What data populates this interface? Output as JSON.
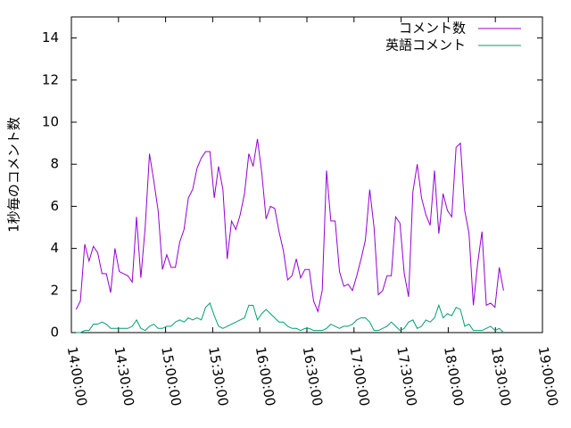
{
  "chart_data": {
    "type": "line",
    "ylabel": "1秒毎のコメント数",
    "x": [
      "14:03:00",
      "14:05:45",
      "14:08:30",
      "14:11:15",
      "14:14:00",
      "14:16:45",
      "14:19:30",
      "14:22:15",
      "14:25:00",
      "14:27:45",
      "14:30:30",
      "14:33:15",
      "14:36:00",
      "14:38:45",
      "14:41:30",
      "14:44:15",
      "14:47:00",
      "14:49:45",
      "14:52:30",
      "14:55:15",
      "14:58:00",
      "15:00:45",
      "15:03:30",
      "15:06:15",
      "15:09:00",
      "15:11:45",
      "15:14:30",
      "15:17:15",
      "15:20:00",
      "15:22:45",
      "15:25:30",
      "15:28:15",
      "15:31:00",
      "15:33:45",
      "15:36:30",
      "15:39:15",
      "15:42:00",
      "15:44:45",
      "15:47:30",
      "15:50:15",
      "15:53:00",
      "15:55:45",
      "15:58:30",
      "16:01:15",
      "16:04:00",
      "16:06:45",
      "16:09:30",
      "16:12:15",
      "16:15:00",
      "16:17:45",
      "16:20:30",
      "16:23:15",
      "16:26:00",
      "16:28:45",
      "16:31:30",
      "16:34:15",
      "16:37:00",
      "16:39:45",
      "16:42:30",
      "16:45:15",
      "16:48:00",
      "16:50:45",
      "16:53:30",
      "16:56:15",
      "16:59:00",
      "17:01:45",
      "17:04:30",
      "17:07:15",
      "17:10:00",
      "17:12:45",
      "17:15:30",
      "17:18:15",
      "17:21:00",
      "17:23:45",
      "17:26:30",
      "17:29:15",
      "17:32:00",
      "17:34:45",
      "17:37:30",
      "17:40:15",
      "17:43:00",
      "17:45:45",
      "17:48:30",
      "17:51:15",
      "17:54:00",
      "17:56:45",
      "17:59:30",
      "18:02:15",
      "18:05:00",
      "18:07:45",
      "18:10:30",
      "18:13:15",
      "18:16:00",
      "18:18:45",
      "18:21:30",
      "18:24:15",
      "18:27:00",
      "18:29:45",
      "18:32:30",
      "18:35:15"
    ],
    "series": [
      {
        "name": "コメント数",
        "color": "#9400d3",
        "values": [
          1.1,
          1.5,
          4.2,
          3.4,
          4.1,
          3.8,
          2.8,
          2.8,
          1.9,
          4.0,
          2.9,
          2.8,
          2.7,
          2.4,
          5.5,
          2.6,
          5.0,
          8.5,
          7.2,
          5.8,
          3.0,
          3.7,
          3.1,
          3.1,
          4.3,
          4.9,
          6.4,
          6.8,
          7.8,
          8.3,
          8.6,
          8.6,
          6.4,
          7.9,
          6.8,
          3.5,
          5.3,
          4.9,
          5.6,
          6.6,
          8.5,
          7.9,
          9.2,
          7.6,
          5.4,
          6.0,
          5.9,
          4.8,
          3.9,
          2.5,
          2.7,
          3.5,
          2.6,
          3.0,
          3.0,
          1.5,
          1.0,
          2.0,
          7.7,
          5.3,
          5.3,
          2.9,
          2.2,
          2.3,
          2.0,
          2.7,
          3.5,
          4.4,
          6.8,
          5.0,
          1.8,
          2.0,
          2.7,
          2.7,
          5.5,
          5.2,
          2.8,
          1.7,
          6.7,
          8.0,
          6.4,
          5.6,
          5.1,
          7.7,
          4.7,
          6.6,
          5.8,
          5.5,
          8.8,
          9.0,
          5.8,
          4.7,
          1.3,
          3.3,
          4.8,
          1.3,
          1.4,
          1.2,
          3.1,
          2.0
        ]
      },
      {
        "name": "英語コメント",
        "color": "#009e73",
        "values": [
          0.0,
          0.0,
          0.1,
          0.1,
          0.4,
          0.4,
          0.5,
          0.4,
          0.2,
          0.2,
          0.2,
          0.2,
          0.2,
          0.3,
          0.6,
          0.2,
          0.1,
          0.3,
          0.4,
          0.2,
          0.2,
          0.3,
          0.3,
          0.5,
          0.6,
          0.5,
          0.7,
          0.6,
          0.7,
          0.6,
          1.2,
          1.4,
          0.8,
          0.3,
          0.2,
          0.3,
          0.4,
          0.5,
          0.6,
          0.7,
          1.3,
          1.3,
          0.6,
          0.9,
          1.1,
          0.9,
          0.7,
          0.5,
          0.5,
          0.3,
          0.2,
          0.2,
          0.1,
          0.2,
          0.2,
          0.1,
          0.1,
          0.1,
          0.2,
          0.4,
          0.3,
          0.2,
          0.3,
          0.3,
          0.4,
          0.6,
          0.7,
          0.7,
          0.5,
          0.1,
          0.1,
          0.2,
          0.3,
          0.5,
          0.3,
          0.1,
          0.2,
          0.5,
          0.6,
          0.2,
          0.3,
          0.6,
          0.5,
          0.7,
          1.3,
          0.7,
          0.9,
          0.8,
          1.2,
          1.1,
          0.3,
          0.4,
          0.1,
          0.1,
          0.1,
          0.2,
          0.3,
          0.1,
          0.2,
          0.0
        ]
      }
    ],
    "xlim": [
      "14:00:00",
      "19:00:00"
    ],
    "xticks": [
      "14:00:00",
      "14:30:00",
      "15:00:00",
      "15:30:00",
      "16:00:00",
      "16:30:00",
      "17:00:00",
      "17:30:00",
      "18:00:00",
      "18:30:00",
      "19:00:00"
    ],
    "ylim": [
      0,
      15
    ],
    "yticks": [
      0,
      2,
      4,
      6,
      8,
      10,
      12,
      14
    ],
    "legend": "top-right"
  }
}
